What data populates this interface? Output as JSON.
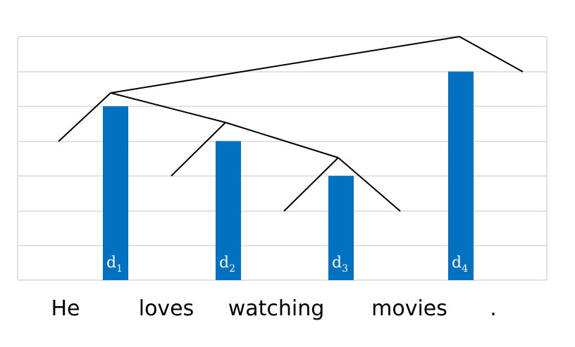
{
  "words": [
    "He",
    "loves",
    "watching",
    "movies",
    "."
  ],
  "depths": [
    {
      "base": "d",
      "sub": "1",
      "value": 5
    },
    {
      "base": "d",
      "sub": "2",
      "value": 4
    },
    {
      "base": "d",
      "sub": "3",
      "value": 3
    },
    {
      "base": "d",
      "sub": "4",
      "value": 6
    }
  ],
  "colors": {
    "bar": "#0070c0",
    "grid": "#d9d9d9",
    "tree": "#000000"
  }
}
